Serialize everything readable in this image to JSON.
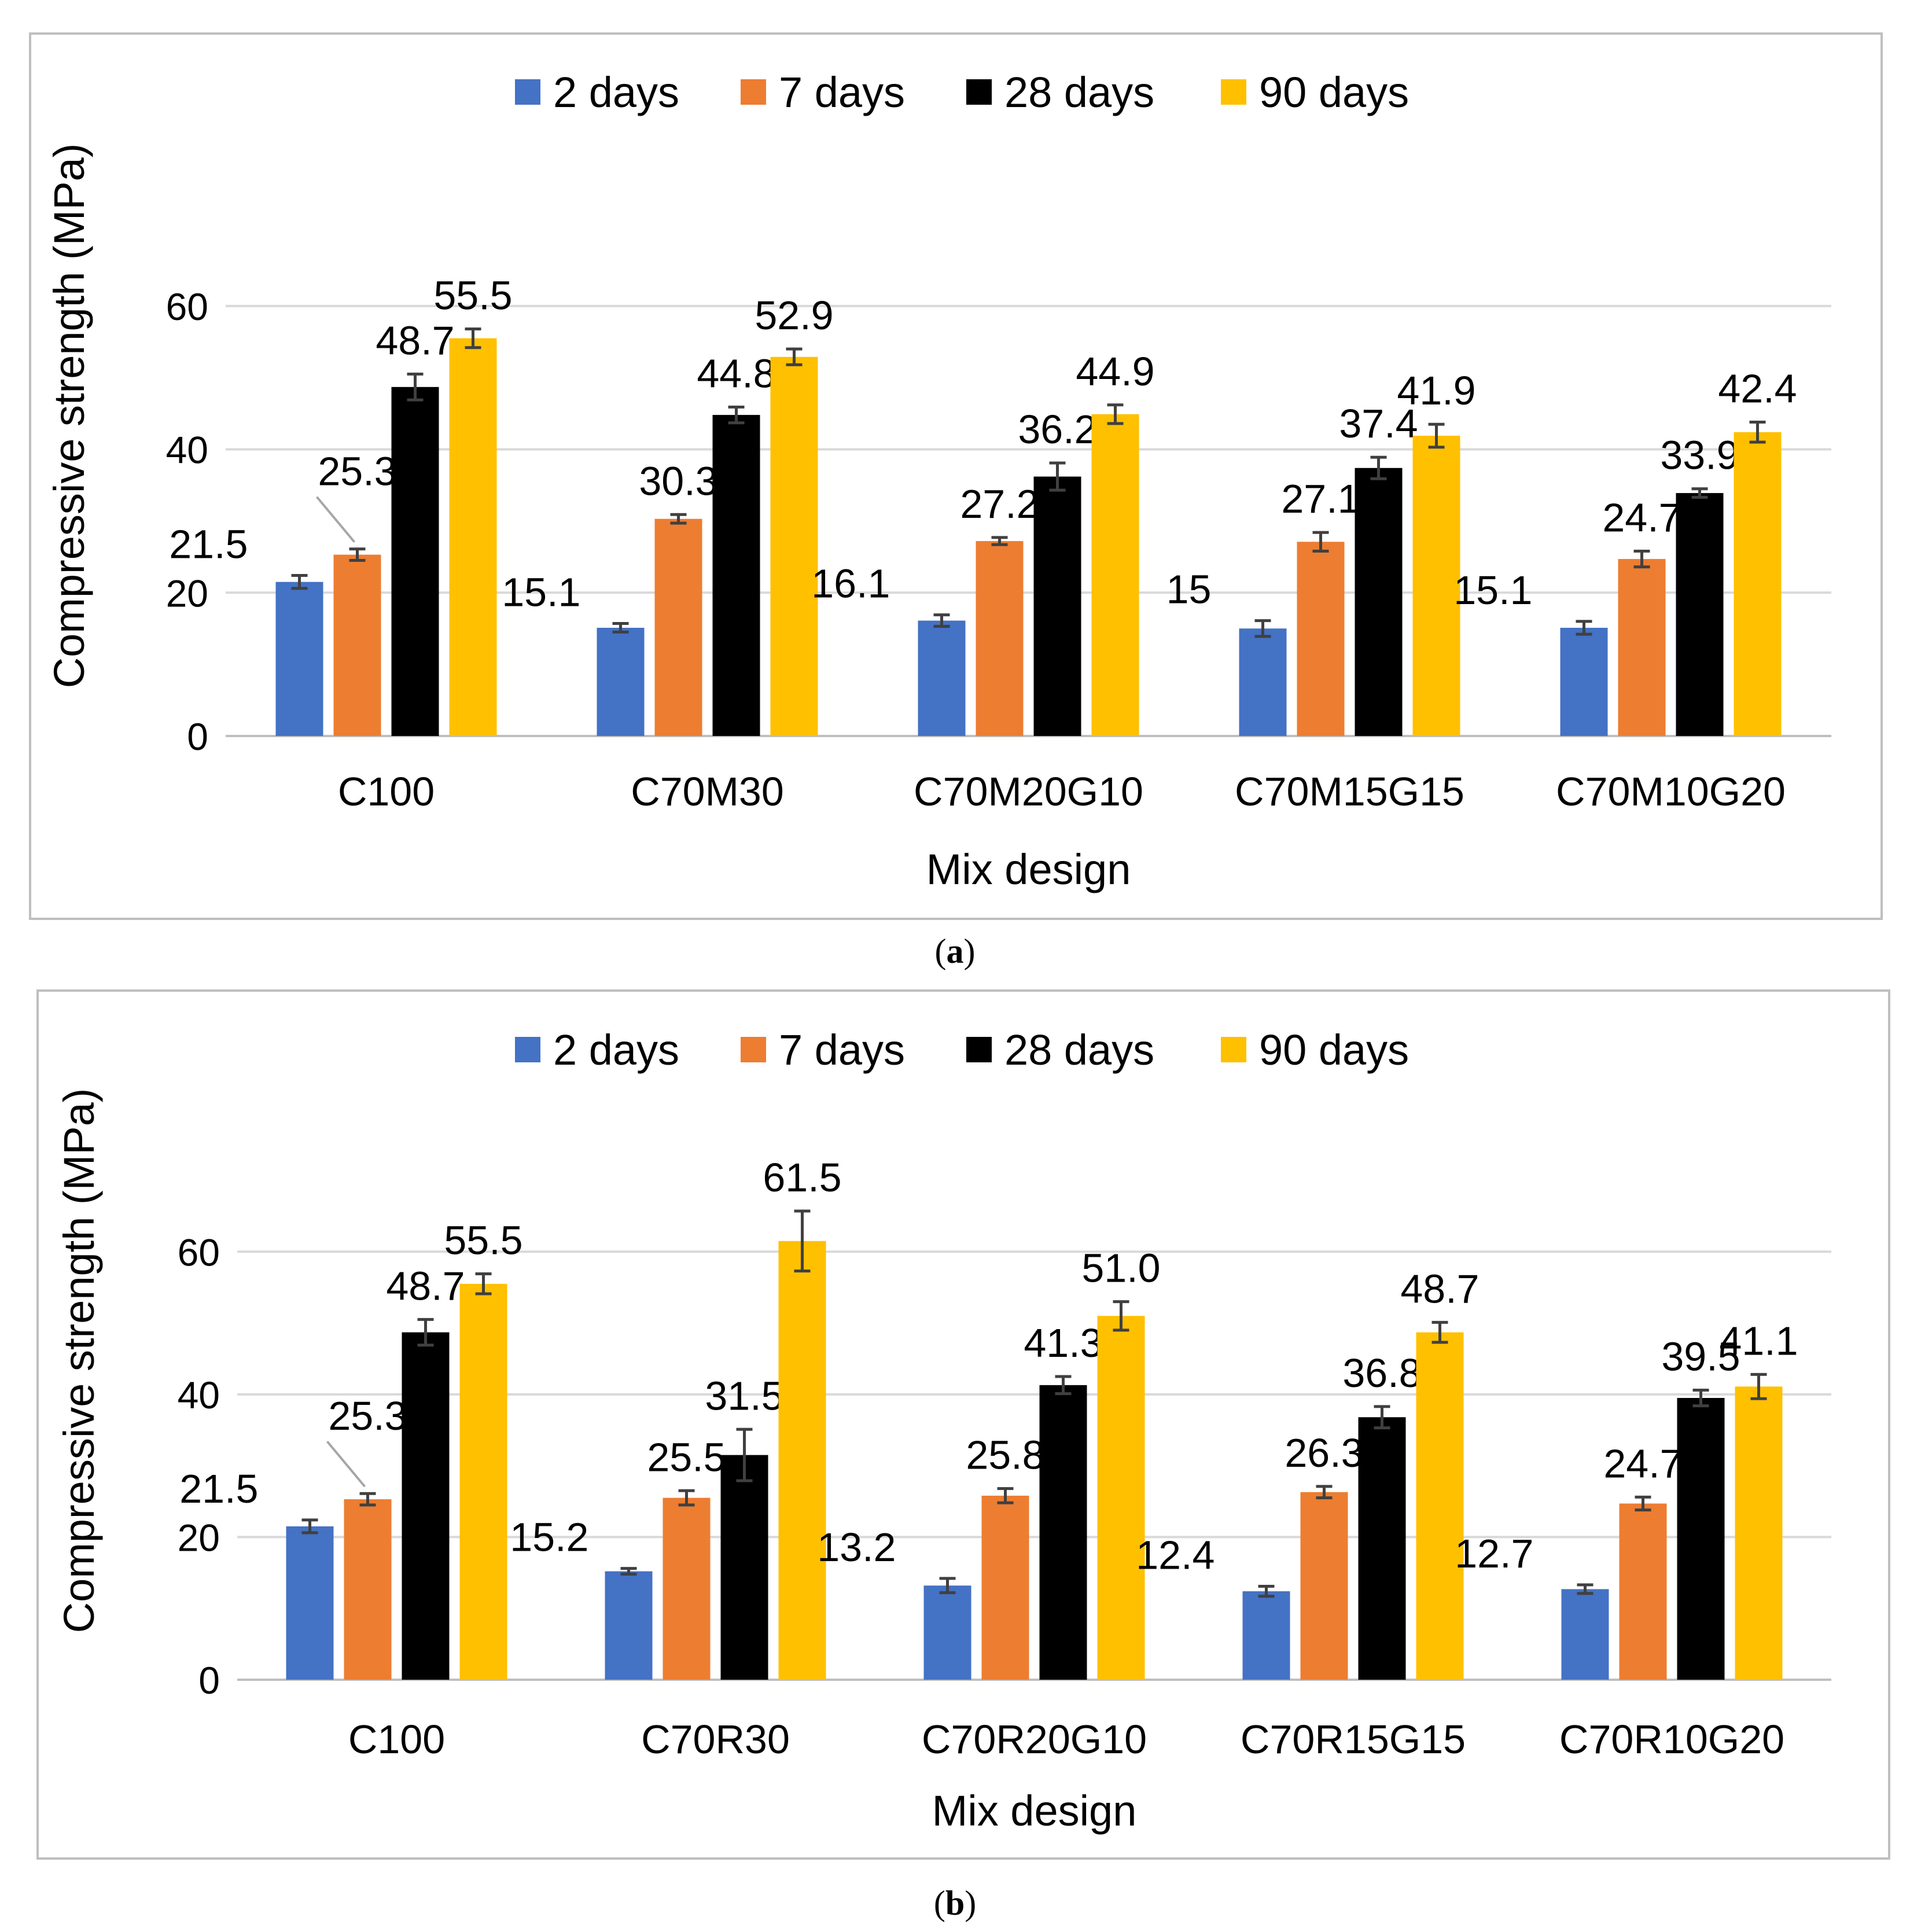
{
  "chart_data": [
    {
      "type": "bar",
      "panel_label": "a",
      "title": "",
      "xlabel": "Mix design",
      "ylabel": "Compressive strength (MPa)",
      "ylim": [
        0,
        70
      ],
      "yticks": [
        "0",
        "20",
        "40",
        "60"
      ],
      "grid": true,
      "legend_position": "top",
      "categories": [
        "C100",
        "C70M30",
        "C70M20G10",
        "C70M15G15",
        "C70M10G20"
      ],
      "series": [
        {
          "name": "2 days",
          "color": "#4472C4",
          "values": [
            21.5,
            15.1,
            16.1,
            15.0,
            15.1
          ],
          "labels": [
            "21.5",
            "15.1",
            "16.1",
            "15",
            "15.1"
          ],
          "errors": [
            0.9,
            0.6,
            0.8,
            1.1,
            0.9
          ]
        },
        {
          "name": "7 days",
          "color": "#ED7D31",
          "values": [
            25.3,
            30.3,
            27.2,
            27.1,
            24.7
          ],
          "labels": [
            "25.3",
            "30.3",
            "27.2",
            "27.1",
            "24.7"
          ],
          "errors": [
            0.8,
            0.6,
            0.5,
            1.3,
            1.1
          ]
        },
        {
          "name": "28 days",
          "color": "#000000",
          "values": [
            48.7,
            44.8,
            36.2,
            37.4,
            33.9
          ],
          "labels": [
            "48.7",
            "44.8",
            "36.2",
            "37.4",
            "33.9"
          ],
          "errors": [
            1.8,
            1.1,
            1.9,
            1.5,
            0.6
          ]
        },
        {
          "name": "90 days",
          "color": "#FFC000",
          "values": [
            55.5,
            52.9,
            44.9,
            41.9,
            42.4
          ],
          "labels": [
            "55.5",
            "52.9",
            "44.9",
            "41.9",
            "42.4"
          ],
          "errors": [
            1.3,
            1.1,
            1.3,
            1.6,
            1.4
          ]
        }
      ]
    },
    {
      "type": "bar",
      "panel_label": "b",
      "title": "",
      "xlabel": "Mix design",
      "ylabel": "Compressive strength (MPa)",
      "ylim": [
        0,
        70
      ],
      "yticks": [
        "0",
        "20",
        "40",
        "60"
      ],
      "grid": true,
      "legend_position": "top",
      "categories": [
        "C100",
        "C70R30",
        "C70R20G10",
        "C70R15G15",
        "C70R10G20"
      ],
      "series": [
        {
          "name": "2 days",
          "color": "#4472C4",
          "values": [
            21.5,
            15.2,
            13.2,
            12.4,
            12.7
          ],
          "labels": [
            "21.5",
            "15.2",
            "13.2",
            "12.4",
            "12.7"
          ],
          "errors": [
            0.9,
            0.4,
            1.0,
            0.7,
            0.6
          ]
        },
        {
          "name": "7 days",
          "color": "#ED7D31",
          "values": [
            25.3,
            25.5,
            25.8,
            26.3,
            24.7
          ],
          "labels": [
            "25.3",
            "25.5",
            "25.8",
            "26.3",
            "24.7"
          ],
          "errors": [
            0.8,
            1.0,
            1.0,
            0.8,
            0.9
          ]
        },
        {
          "name": "28 days",
          "color": "#000000",
          "values": [
            48.7,
            31.5,
            41.3,
            36.8,
            39.5
          ],
          "labels": [
            "48.7",
            "31.5",
            "41.3",
            "36.8",
            "39.5"
          ],
          "errors": [
            1.8,
            3.6,
            1.2,
            1.5,
            1.1
          ]
        },
        {
          "name": "90 days",
          "color": "#FFC000",
          "values": [
            55.5,
            61.5,
            51.0,
            48.7,
            41.1
          ],
          "labels": [
            "55.5",
            "61.5",
            "51.0",
            "48.7",
            "41.1"
          ],
          "errors": [
            1.4,
            4.2,
            2.0,
            1.4,
            1.7
          ]
        }
      ]
    }
  ]
}
